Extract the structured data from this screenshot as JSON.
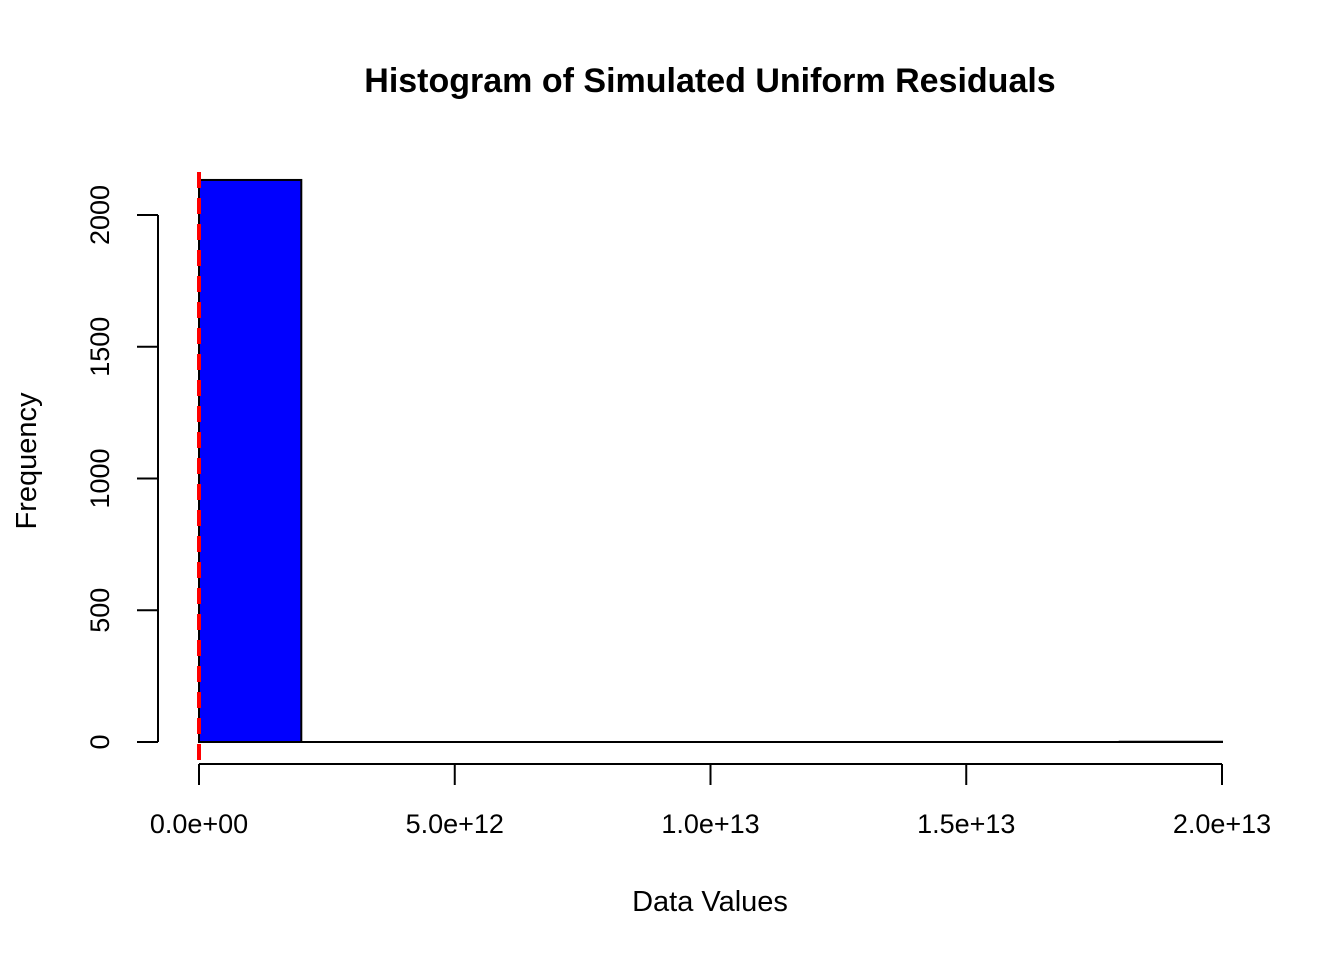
{
  "chart_data": {
    "type": "bar",
    "title": "Histogram of Simulated Uniform Residuals",
    "xlabel": "Data Values",
    "ylabel": "Frequency",
    "xlim": [
      0,
      20000000000000
    ],
    "ylim": [
      0,
      2130
    ],
    "x_ticks": [
      {
        "value": 0,
        "label": "0.0e+00"
      },
      {
        "value": 5000000000000,
        "label": "5.0e+12"
      },
      {
        "value": 10000000000000,
        "label": "1.0e+13"
      },
      {
        "value": 15000000000000,
        "label": "1.5e+13"
      },
      {
        "value": 20000000000000,
        "label": "2.0e+13"
      }
    ],
    "y_ticks": [
      {
        "value": 0,
        "label": "0"
      },
      {
        "value": 500,
        "label": "500"
      },
      {
        "value": 1000,
        "label": "1000"
      },
      {
        "value": 1500,
        "label": "1500"
      },
      {
        "value": 2000,
        "label": "2000"
      }
    ],
    "bins": [
      {
        "start": 0,
        "end": 2000000000000,
        "count": 2133
      },
      {
        "start": 2000000000000,
        "end": 4000000000000,
        "count": 0
      },
      {
        "start": 4000000000000,
        "end": 6000000000000,
        "count": 0
      },
      {
        "start": 6000000000000,
        "end": 8000000000000,
        "count": 0
      },
      {
        "start": 8000000000000,
        "end": 10000000000000,
        "count": 0
      },
      {
        "start": 10000000000000,
        "end": 12000000000000,
        "count": 0
      },
      {
        "start": 12000000000000,
        "end": 14000000000000,
        "count": 0
      },
      {
        "start": 14000000000000,
        "end": 16000000000000,
        "count": 0
      },
      {
        "start": 16000000000000,
        "end": 18000000000000,
        "count": 0
      },
      {
        "start": 18000000000000,
        "end": 20000000000000,
        "count": 1
      }
    ],
    "reference_line": {
      "x": 0,
      "style": "dashed"
    },
    "colors": {
      "bar_fill": "#0000FF",
      "bar_border": "#000000",
      "reference_line": "#FF0000"
    },
    "grid": false,
    "legend": "none"
  }
}
